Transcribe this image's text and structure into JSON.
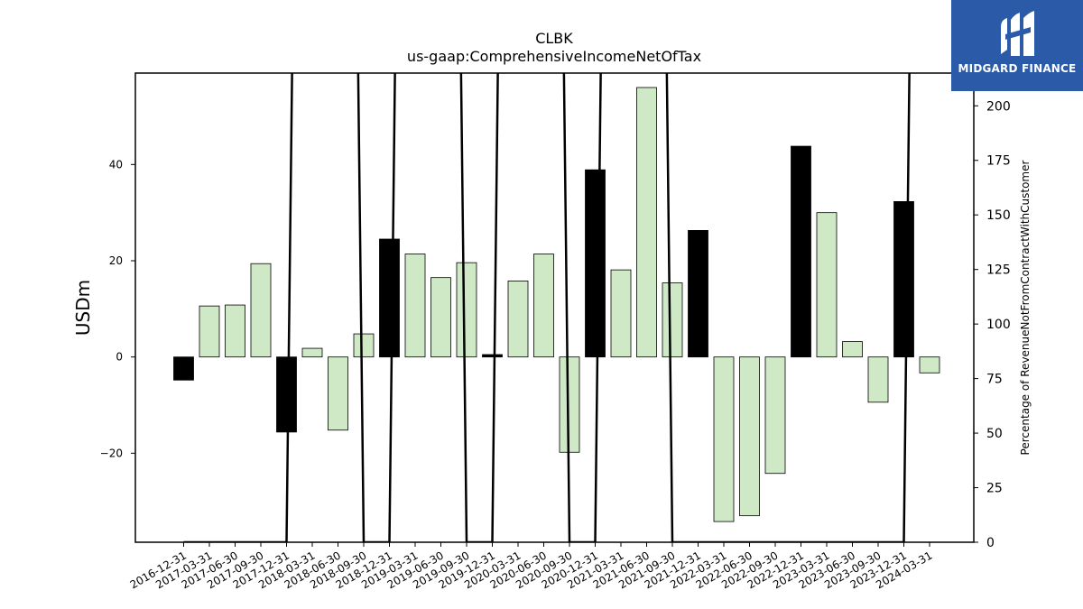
{
  "chart_data": {
    "type": "bar",
    "title": "CLBK",
    "subtitle": "us-gaap:ComprehensiveIncomeNetOfTax",
    "ylabel": "USDm",
    "y2label": "Percentage of RevenueNotFromContractWithCustomer",
    "ylim": [
      -38.5,
      59.0
    ],
    "y2lim": [
      0,
      215.0
    ],
    "yticks": [
      -20,
      0,
      20,
      40
    ],
    "y2ticks": [
      0,
      25,
      50,
      75,
      100,
      125,
      150,
      175,
      200
    ],
    "categories": [
      "2016-12-31",
      "2017-03-31",
      "2017-06-30",
      "2017-09-30",
      "2017-12-31",
      "2018-03-31",
      "2018-06-30",
      "2018-09-30",
      "2018-12-31",
      "2019-03-31",
      "2019-06-30",
      "2019-09-30",
      "2019-12-31",
      "2020-03-31",
      "2020-06-30",
      "2020-09-30",
      "2020-12-31",
      "2021-03-31",
      "2021-06-30",
      "2021-09-30",
      "2021-12-31",
      "2022-03-31",
      "2022-06-30",
      "2022-09-30",
      "2022-12-31",
      "2023-03-31",
      "2023-06-30",
      "2023-09-30",
      "2023-12-31",
      "2024-03-31"
    ],
    "values": [
      -4.8,
      10.6,
      10.8,
      19.4,
      -15.6,
      1.8,
      -15.2,
      4.8,
      24.5,
      21.4,
      16.5,
      19.6,
      0.5,
      15.8,
      21.4,
      -19.8,
      38.9,
      18.1,
      56.0,
      15.4,
      26.3,
      -34.2,
      -33.0,
      -24.2,
      43.8,
      30.0,
      3.2,
      -9.4,
      32.3,
      -3.3
    ],
    "highlight": [
      true,
      false,
      false,
      false,
      true,
      false,
      false,
      false,
      true,
      false,
      false,
      false,
      true,
      false,
      false,
      false,
      true,
      false,
      false,
      false,
      true,
      false,
      false,
      false,
      true,
      false,
      false,
      false,
      true,
      false
    ],
    "line_series": {
      "values": [
        0,
        0,
        0,
        0,
        0,
        null,
        null,
        0,
        0,
        null,
        null,
        0,
        0,
        null,
        null,
        0,
        0,
        null,
        null,
        0,
        0,
        0,
        0,
        0,
        0,
        0,
        0,
        0,
        0,
        null
      ]
    },
    "colors": {
      "bar": "#cfe9c7",
      "highlight": "#000000",
      "line": "#000000",
      "edge": "#000000"
    },
    "grid": false
  },
  "logo": {
    "brand": "MIDGARD FINANCE"
  }
}
